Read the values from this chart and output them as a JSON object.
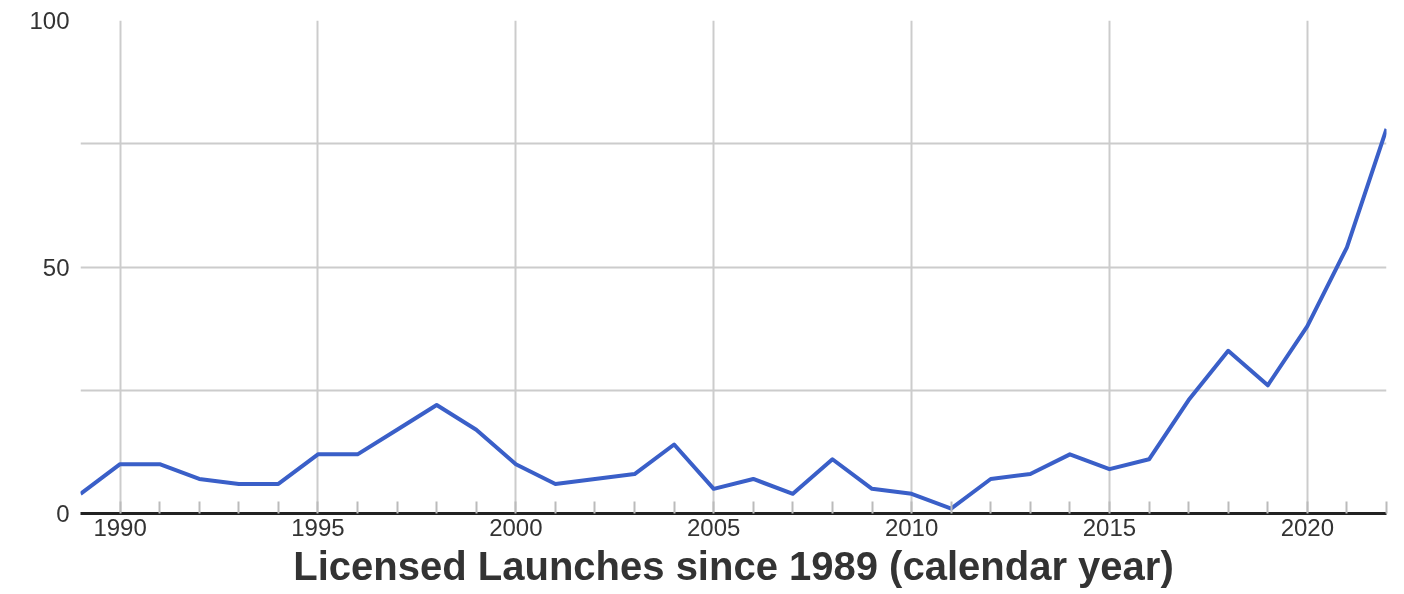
{
  "chart_data": {
    "type": "line",
    "xlabel": "Licensed Launches since 1989 (calendar year)",
    "x": [
      1989,
      1990,
      1991,
      1992,
      1993,
      1994,
      1995,
      1996,
      1997,
      1998,
      1999,
      2000,
      2001,
      2002,
      2003,
      2004,
      2005,
      2006,
      2007,
      2008,
      2009,
      2010,
      2011,
      2012,
      2013,
      2014,
      2015,
      2016,
      2017,
      2018,
      2019,
      2020,
      2021,
      2022
    ],
    "series": [
      {
        "color": "#3a5fc8",
        "values": [
          4,
          10,
          10,
          7,
          6,
          6,
          12,
          12,
          17,
          22,
          17,
          10,
          6,
          7,
          8,
          14,
          5,
          7,
          4,
          11,
          5,
          4,
          1,
          7,
          8,
          12,
          9,
          11,
          23,
          33,
          26,
          38,
          54,
          78
        ]
      }
    ],
    "xlim": [
      1989,
      2022
    ],
    "xticks": [
      {
        "value": 1990,
        "label": "1990"
      },
      {
        "value": 1991,
        "label": null
      },
      {
        "value": 1992,
        "label": null
      },
      {
        "value": 1993,
        "label": null
      },
      {
        "value": 1994,
        "label": null
      },
      {
        "value": 1995,
        "label": "1995"
      },
      {
        "value": 1996,
        "label": null
      },
      {
        "value": 1997,
        "label": null
      },
      {
        "value": 1998,
        "label": null
      },
      {
        "value": 1999,
        "label": null
      },
      {
        "value": 2000,
        "label": "2000"
      },
      {
        "value": 2001,
        "label": null
      },
      {
        "value": 2002,
        "label": null
      },
      {
        "value": 2003,
        "label": null
      },
      {
        "value": 2004,
        "label": null
      },
      {
        "value": 2005,
        "label": "2005"
      },
      {
        "value": 2006,
        "label": null
      },
      {
        "value": 2007,
        "label": null
      },
      {
        "value": 2008,
        "label": null
      },
      {
        "value": 2009,
        "label": null
      },
      {
        "value": 2010,
        "label": "2010"
      },
      {
        "value": 2011,
        "label": null
      },
      {
        "value": 2012,
        "label": null
      },
      {
        "value": 2013,
        "label": null
      },
      {
        "value": 2014,
        "label": null
      },
      {
        "value": 2015,
        "label": "2015"
      },
      {
        "value": 2016,
        "label": null
      },
      {
        "value": 2017,
        "label": null
      },
      {
        "value": 2018,
        "label": null
      },
      {
        "value": 2019,
        "label": null
      },
      {
        "value": 2020,
        "label": "2020"
      },
      {
        "value": 2021,
        "label": null
      },
      {
        "value": 2022,
        "label": null
      }
    ],
    "ylim": [
      0,
      100
    ],
    "yticks": [
      0,
      {
        "value": 25,
        "label": null
      },
      50,
      {
        "value": 75,
        "label": null
      },
      100
    ],
    "grid": true,
    "marker": "none",
    "line_style": "solid"
  }
}
